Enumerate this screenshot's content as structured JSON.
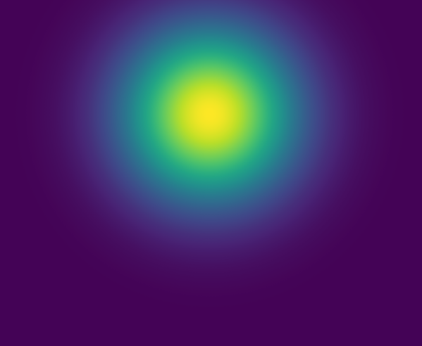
{
  "chart_data": {
    "type": "heatmap",
    "title": "",
    "xlabel": "",
    "ylabel": "",
    "colormap": "viridis",
    "value_range": [
      0,
      1
    ],
    "grid": false,
    "legend": "none",
    "peak": {
      "x_fraction": 0.497,
      "y_fraction": 0.33,
      "value": 1.0
    },
    "sigma_fraction": {
      "x": 0.145,
      "y": 0.176
    },
    "colors": {
      "background": "#440154",
      "low": "#440154",
      "mid": "#21918c",
      "high": "#fde725"
    }
  }
}
